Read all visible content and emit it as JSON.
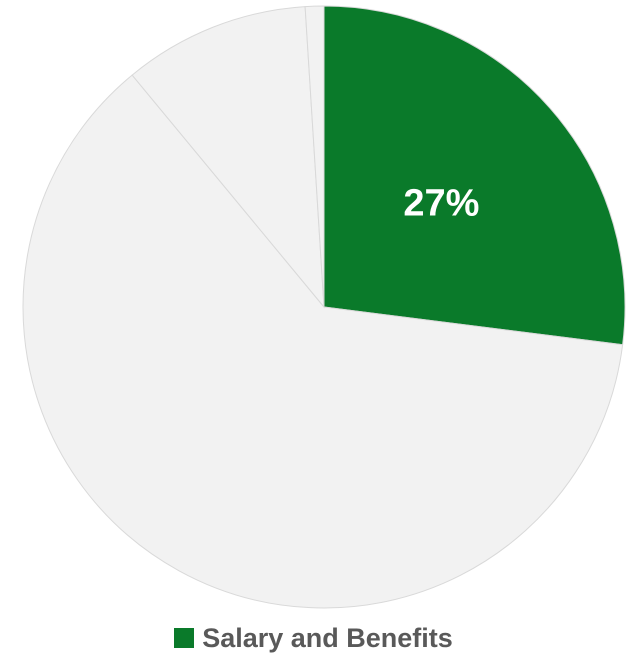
{
  "chart_data": {
    "type": "pie",
    "slices": [
      {
        "label": "Salary and Benefits",
        "value": 27,
        "color": "#0a7a2a",
        "data_label": "27%",
        "in_legend": true
      },
      {
        "label": "",
        "value": 62,
        "color": "#f2f2f2",
        "data_label": "",
        "in_legend": false
      },
      {
        "label": "",
        "value": 10,
        "color": "#f2f2f2",
        "data_label": "",
        "in_legend": false
      },
      {
        "label": "",
        "value": 1,
        "color": "#f2f2f2",
        "data_label": "",
        "in_legend": false
      }
    ],
    "legend": {
      "placement": "bottom",
      "entries": [
        {
          "label": "Salary and Benefits",
          "color": "#0a7a2a"
        }
      ]
    }
  }
}
